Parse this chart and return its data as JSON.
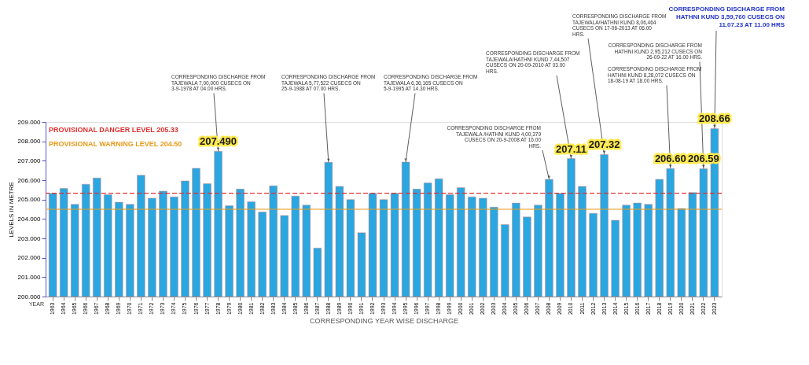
{
  "chart_data": {
    "type": "bar",
    "xlabel": "CORRESPONDING YEAR WISE DISCHARGE",
    "ylabel": "LEVELS IN METRE",
    "categories": [
      "1963",
      "1964",
      "1965",
      "1966",
      "1967",
      "1968",
      "1969",
      "1970",
      "1971",
      "1972",
      "1973",
      "1974",
      "1975",
      "1976",
      "1977",
      "1978",
      "1979",
      "1980",
      "1981",
      "1982",
      "1983",
      "1984",
      "1985",
      "1986",
      "1987",
      "1988",
      "1989",
      "1990",
      "1991",
      "1992",
      "1993",
      "1994",
      "1995",
      "1996",
      "1997",
      "1998",
      "1999",
      "2000",
      "2001",
      "2002",
      "2003",
      "2004",
      "2005",
      "2006",
      "2007",
      "2008",
      "2009",
      "2010",
      "2011",
      "2012",
      "2013",
      "2014",
      "2015",
      "2016",
      "2017",
      "2018",
      "2019",
      "2020",
      "2021",
      "2022",
      "2023"
    ],
    "values": [
      205.32,
      205.57,
      204.75,
      205.79,
      206.11,
      205.25,
      204.86,
      204.75,
      206.25,
      205.07,
      205.43,
      205.14,
      205.96,
      206.61,
      205.82,
      207.49,
      204.68,
      205.54,
      204.89,
      204.36,
      205.71,
      204.18,
      205.18,
      204.71,
      202.5,
      206.92,
      205.68,
      205.0,
      203.29,
      205.32,
      205.0,
      205.32,
      206.93,
      205.54,
      205.86,
      206.07,
      205.25,
      205.61,
      205.14,
      205.07,
      204.61,
      203.71,
      204.82,
      204.1,
      204.71,
      206.04,
      205.32,
      207.11,
      205.68,
      204.29,
      207.32,
      203.93,
      204.71,
      204.82,
      204.75,
      206.04,
      206.6,
      204.54,
      205.36,
      206.59,
      208.66
    ],
    "value_labels": [
      null,
      null,
      null,
      null,
      null,
      null,
      null,
      null,
      null,
      null,
      null,
      null,
      null,
      null,
      null,
      "207.490",
      null,
      null,
      null,
      null,
      null,
      null,
      null,
      null,
      null,
      null,
      null,
      null,
      null,
      null,
      null,
      null,
      null,
      null,
      null,
      null,
      null,
      null,
      null,
      null,
      null,
      null,
      null,
      null,
      null,
      null,
      null,
      "207.11",
      null,
      null,
      "207.32",
      null,
      null,
      null,
      null,
      null,
      "206.60",
      null,
      null,
      "206.59",
      "208.66"
    ],
    "color": "#2aa6e0",
    "ylim": [
      200,
      209
    ],
    "yticks": [
      {
        "value": 200,
        "label": "200.000"
      },
      {
        "value": 201,
        "label": "201.000"
      },
      {
        "value": 202,
        "label": "202.000"
      },
      {
        "value": 203,
        "label": "203.000"
      },
      {
        "value": 204,
        "label": "204.000"
      },
      {
        "value": 205,
        "label": "205.000"
      },
      {
        "value": 206,
        "label": "206.000"
      },
      {
        "value": 207,
        "label": "207.000"
      },
      {
        "value": 208,
        "label": "208.000"
      },
      {
        "value": 209,
        "label": "209.000"
      }
    ],
    "ref_lines": [
      {
        "axis": "y",
        "value": 205.33,
        "label": "PROVISIONAL DANGER LEVEL 205.33",
        "color": "#e03030",
        "line_style": "dashed"
      },
      {
        "axis": "y",
        "value": 204.5,
        "label": "PROVISIONAL WARNING LEVEL 204.50",
        "color": "#e89a1a",
        "line_style": "solid"
      }
    ],
    "annotations": [
      "YEAR",
      {
        "text": "CORRESPONDING DISCHARGE FROM TAJEWALA 7,00,000 CUSECS ON 3-9-1978 AT 04.00 HRS.",
        "x": "1978",
        "y": 207.49
      },
      {
        "text": "CORRESPONDING DISCHARGE FROM TAJEWALA 5,77,522 CUSECS ON 25-9-1988 AT 07.00 HRS.",
        "x": "1988",
        "y": 206.92
      },
      {
        "text": "CORRESPONDING DISCHARGE FROM TAJEWALA 6,36,165 CUSECS ON 5-9-1995 AT 14.30 HRS.",
        "x": "1995",
        "y": 206.93
      },
      {
        "text": "CORRESPONDING DISCHARGE FROM TAJEWALA /HATHNI KUND 4,00,379 CUSECS ON 20-9-2008 AT 16.00 HRS.",
        "x": "2008",
        "y": 206.04
      },
      {
        "text": "CORRESPONDING DISCHARGE FROM TAJEWALA/HATHNI KUND 7,44,507 CUSECS ON 20-09-2010 AT 03.00 HRS.",
        "x": "2010",
        "y": 207.11
      },
      {
        "text": "CORRESPONDING DISCHARGE FROM TAJEWALA/HATHNI KUND 8,06,464 CUSECS ON 17-06-2013 AT 06.00 HRS.",
        "x": "2013",
        "y": 207.32
      },
      {
        "text": "CORRESPONDING DISCHARGE FROM HATHNI KUND 8,28,072 CUSECS ON 18-08-19 AT 18.00 HRS.",
        "x": "2019",
        "y": 206.6
      },
      {
        "text": "CORRESPONDING DISCHARGE FROM HATHNI KUND 2,95,212 CUSECS ON 26-09-22 AT 16.00 HRS.",
        "x": "2022",
        "y": 206.59
      },
      {
        "text": "CORRESPONDING DISCHARGE FROM HATHNI KUND 3,59,760 CUSECS ON 11.07.23 AT 11.00 HRS",
        "x": "2023",
        "y": 208.66
      }
    ],
    "grid": false
  }
}
